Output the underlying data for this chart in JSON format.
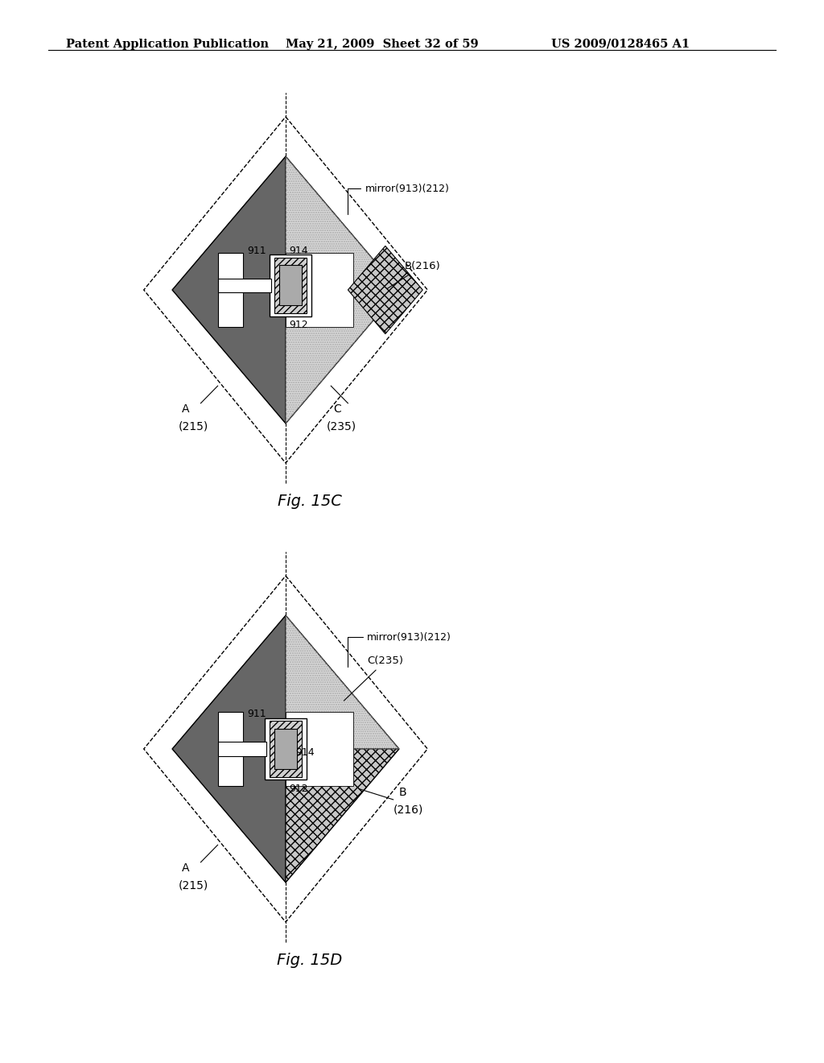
{
  "bg_color": "#ffffff",
  "header_text": "Patent Application Publication",
  "header_date": "May 21, 2009  Sheet 32 of 59",
  "header_patent": "US 2009/0128465 A1",
  "fig15c_label": "Fig. 15C",
  "fig15d_label": "Fig. 15D",
  "black": "#000000",
  "white": "#ffffff",
  "dark_gray": "#666666",
  "mid_gray": "#999999",
  "light_gray": "#cccccc",
  "plate_gray": "#aaaaaa",
  "dot_gray": "#d8d8d8"
}
